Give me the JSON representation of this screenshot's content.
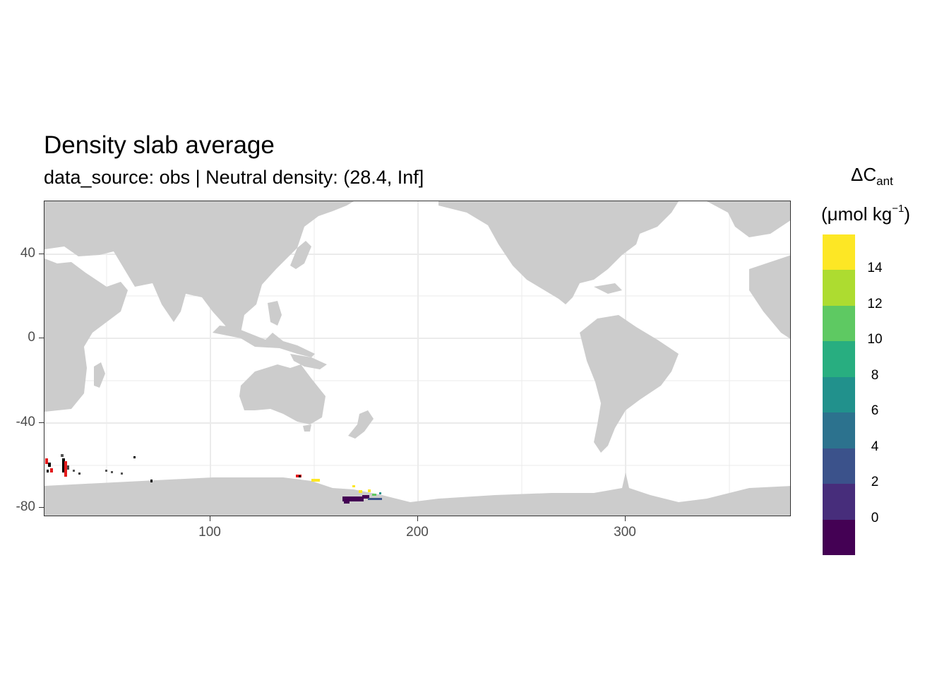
{
  "title": "Density slab average",
  "subtitle": "data_source: obs | Neutral density: (28.4, Inf]",
  "legend": {
    "title_symbol": "ΔC",
    "title_subscript": "ant",
    "unit_prefix": "(μmol kg",
    "unit_superscript": "−1",
    "unit_suffix": ")",
    "bin_colors": [
      "#FDE725",
      "#ADDC30",
      "#5EC962",
      "#28AE80",
      "#21918C",
      "#2C728E",
      "#3B528B",
      "#472D7B",
      "#440154"
    ],
    "labels": [
      "14",
      "12",
      "10",
      "8",
      "6",
      "4",
      "2",
      "0"
    ]
  },
  "y_axis": {
    "ticks": [
      "40",
      "0",
      "-40",
      "-80"
    ],
    "tick_values": [
      40,
      0,
      -40,
      -80
    ]
  },
  "x_axis": {
    "ticks": [
      "100",
      "200",
      "300"
    ],
    "tick_values": [
      100,
      200,
      300
    ]
  },
  "colors": {
    "land": "#CCCCCC",
    "grid": "#EBEBEB",
    "panel_border": "#333333",
    "missing": "#E41A1C",
    "axis_text": "#4D4D4D"
  },
  "chart_data": {
    "type": "heatmap",
    "title": "Density slab average",
    "subtitle": "data_source: obs | Neutral density: (28.4, Inf]",
    "xlim": [
      20,
      380
    ],
    "ylim": [
      -85,
      65
    ],
    "xticks": [
      100,
      200,
      300
    ],
    "yticks": [
      40,
      0,
      -40,
      -80
    ],
    "grid": true,
    "legend_placement": "right",
    "color_scale": "viridis, binned by 2, from below 0 to above 14",
    "observed_regions": [
      {
        "lon": [
          21,
          31
        ],
        "lat": [
          -64,
          -57
        ],
        "values": "mixed (black, grey, red, low)"
      },
      {
        "lon": [
          44,
          73
        ],
        "lat": [
          -68,
          -56
        ],
        "values": "sparse, dark"
      },
      {
        "lon": [
          141,
          155
        ],
        "lat": [
          -68,
          -65
        ],
        "values": "red and yellow (> 14)"
      },
      {
        "lon": [
          164,
          183
        ],
        "lat": [
          -78,
          -73
        ],
        "values": "dark purple (< 0) with a few > 14"
      }
    ]
  }
}
